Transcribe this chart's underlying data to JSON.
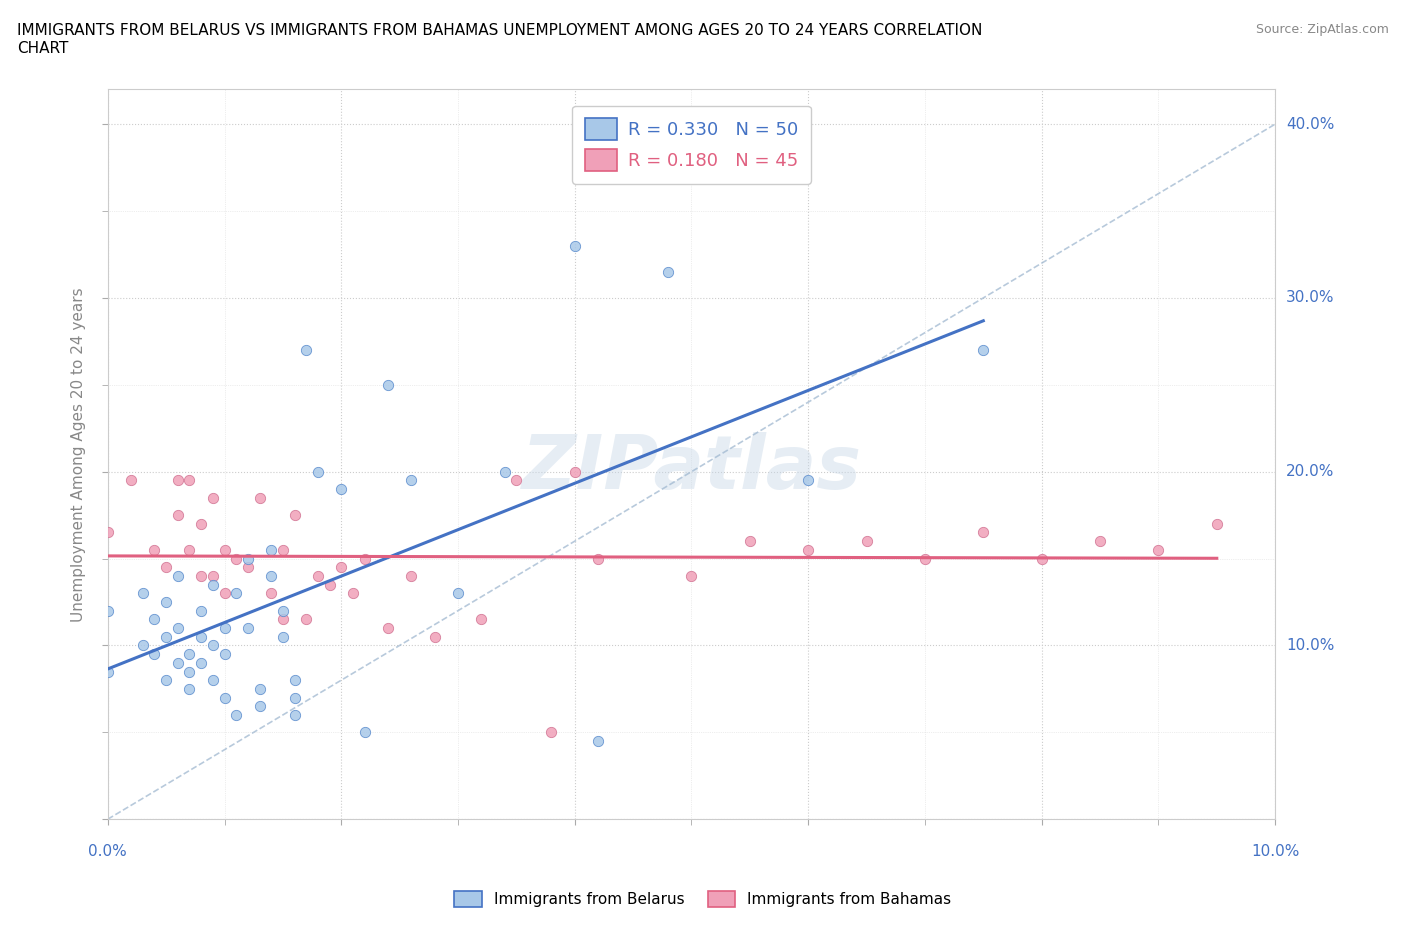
{
  "title": "IMMIGRANTS FROM BELARUS VS IMMIGRANTS FROM BAHAMAS UNEMPLOYMENT AMONG AGES 20 TO 24 YEARS CORRELATION\nCHART",
  "source_text": "Source: ZipAtlas.com",
  "ylabel": "Unemployment Among Ages 20 to 24 years",
  "xlim": [
    0.0,
    0.1
  ],
  "ylim": [
    0.0,
    0.42
  ],
  "color_belarus": "#a8c8e8",
  "color_bahamas": "#f0a0b8",
  "trendline_belarus_color": "#4472c4",
  "trendline_bahamas_color": "#e06080",
  "watermark": "ZIPatlas",
  "belarus_x": [
    0.0,
    0.0,
    0.003,
    0.003,
    0.004,
    0.004,
    0.005,
    0.005,
    0.005,
    0.006,
    0.006,
    0.006,
    0.007,
    0.007,
    0.007,
    0.008,
    0.008,
    0.008,
    0.009,
    0.009,
    0.009,
    0.01,
    0.01,
    0.01,
    0.011,
    0.011,
    0.012,
    0.012,
    0.013,
    0.013,
    0.014,
    0.014,
    0.015,
    0.015,
    0.016,
    0.016,
    0.016,
    0.017,
    0.018,
    0.02,
    0.022,
    0.024,
    0.026,
    0.03,
    0.034,
    0.04,
    0.042,
    0.048,
    0.06,
    0.075
  ],
  "belarus_y": [
    0.085,
    0.12,
    0.1,
    0.13,
    0.095,
    0.115,
    0.105,
    0.125,
    0.08,
    0.09,
    0.11,
    0.14,
    0.095,
    0.085,
    0.075,
    0.105,
    0.09,
    0.12,
    0.08,
    0.1,
    0.135,
    0.095,
    0.07,
    0.11,
    0.06,
    0.13,
    0.11,
    0.15,
    0.065,
    0.075,
    0.14,
    0.155,
    0.105,
    0.12,
    0.06,
    0.07,
    0.08,
    0.27,
    0.2,
    0.19,
    0.05,
    0.25,
    0.195,
    0.13,
    0.2,
    0.33,
    0.045,
    0.315,
    0.195,
    0.27
  ],
  "bahamas_x": [
    0.0,
    0.002,
    0.004,
    0.005,
    0.006,
    0.006,
    0.007,
    0.007,
    0.008,
    0.008,
    0.009,
    0.009,
    0.01,
    0.01,
    0.011,
    0.012,
    0.013,
    0.014,
    0.015,
    0.015,
    0.016,
    0.017,
    0.018,
    0.019,
    0.02,
    0.021,
    0.022,
    0.024,
    0.026,
    0.028,
    0.032,
    0.035,
    0.038,
    0.04,
    0.042,
    0.05,
    0.055,
    0.06,
    0.065,
    0.07,
    0.075,
    0.08,
    0.085,
    0.09,
    0.095
  ],
  "bahamas_y": [
    0.165,
    0.195,
    0.155,
    0.145,
    0.175,
    0.195,
    0.155,
    0.195,
    0.14,
    0.17,
    0.185,
    0.14,
    0.155,
    0.13,
    0.15,
    0.145,
    0.185,
    0.13,
    0.155,
    0.115,
    0.175,
    0.115,
    0.14,
    0.135,
    0.145,
    0.13,
    0.15,
    0.11,
    0.14,
    0.105,
    0.115,
    0.195,
    0.05,
    0.2,
    0.15,
    0.14,
    0.16,
    0.155,
    0.16,
    0.15,
    0.165,
    0.15,
    0.16,
    0.155,
    0.17
  ]
}
